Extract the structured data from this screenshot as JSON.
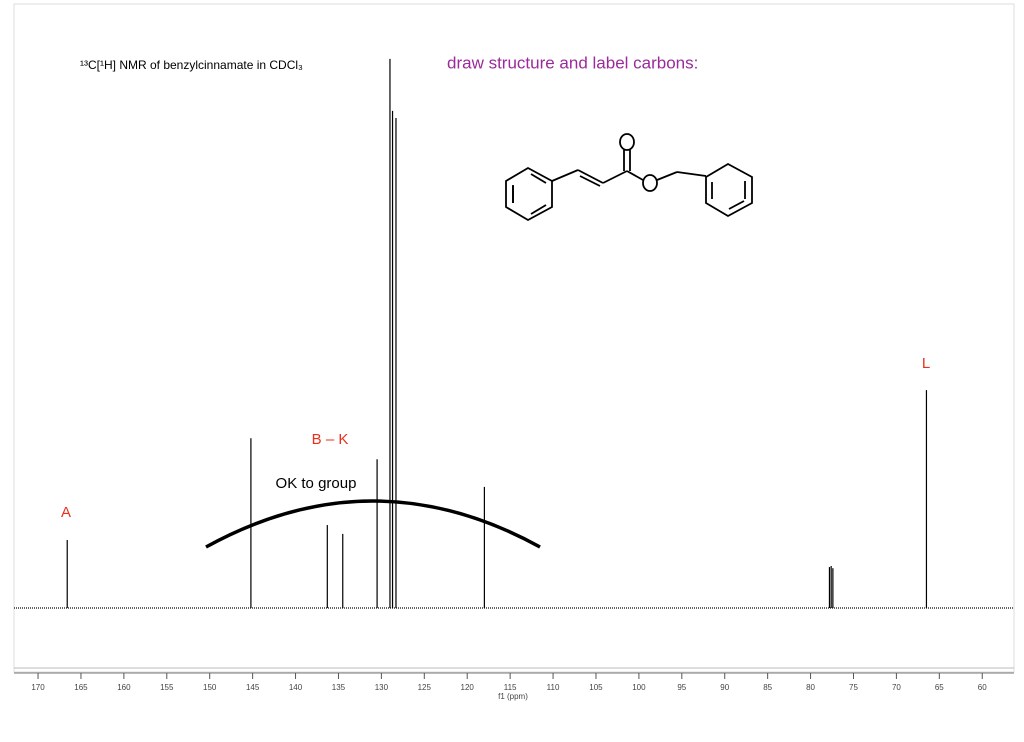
{
  "chart_data": {
    "type": "spectrum",
    "title": "¹³C[¹H] NMR of benzylcinnamate in CDCl₃",
    "subtitle": "draw structure and label carbons:",
    "x_label": "f1 (ppm)",
    "xlim": [
      172.8,
      56.3
    ],
    "ylim": [
      0,
      100
    ],
    "xticks": [
      170,
      165,
      160,
      155,
      150,
      145,
      140,
      135,
      130,
      125,
      120,
      115,
      110,
      105,
      100,
      95,
      90,
      85,
      80,
      75,
      70,
      65,
      60
    ],
    "color": "#000000",
    "x": [
      166.6,
      145.2,
      136.3,
      134.5,
      130.5,
      129.0,
      128.7,
      128.3,
      118.0,
      77.8,
      77.6,
      77.4,
      66.5
    ],
    "values": [
      12.3,
      30.7,
      15.0,
      13.4,
      26.9,
      99.3,
      89.9,
      88.6,
      21.9,
      7.4,
      7.6,
      7.2,
      39.4
    ],
    "annotations": [
      {
        "text": "A",
        "color": "#e8301c"
      },
      {
        "text": "B – K",
        "color": "#e8301c"
      },
      {
        "text": "OK to group",
        "color": "#000000"
      },
      {
        "text": "L",
        "color": "#e8301c"
      }
    ],
    "subtitle_color": "#9b2a9b"
  }
}
